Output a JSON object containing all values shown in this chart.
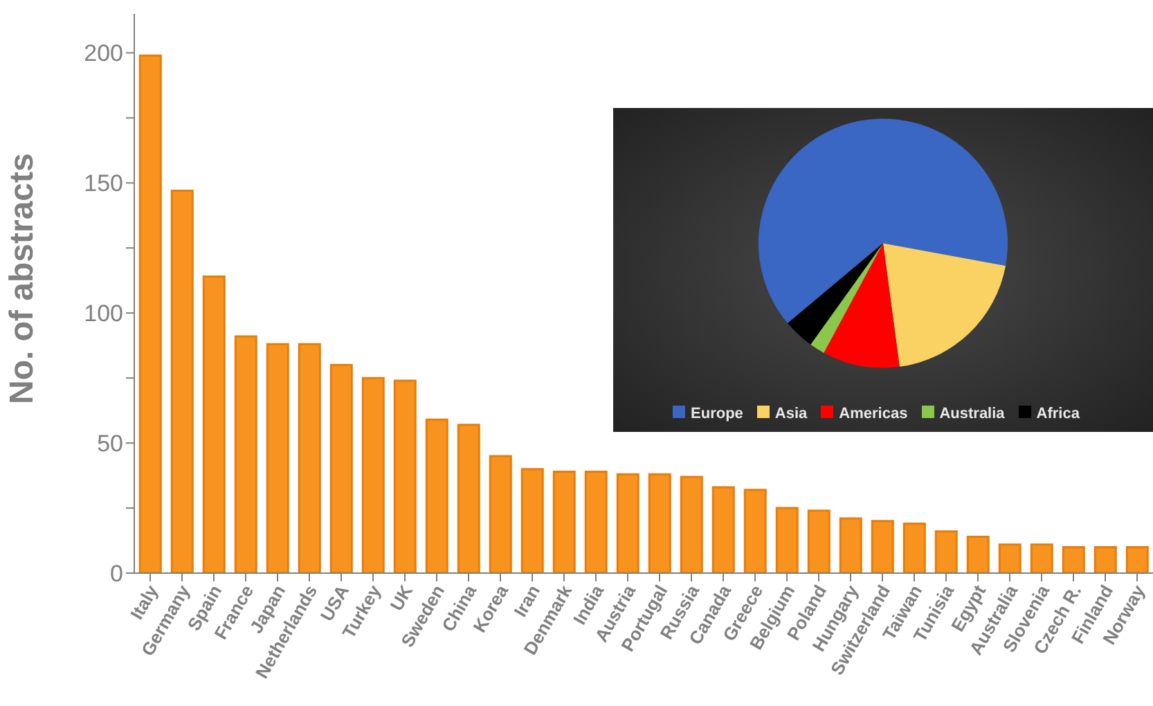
{
  "chart_data": [
    {
      "type": "bar",
      "ylabel": "No. of abstracts",
      "categories": [
        "Italy",
        "Germany",
        "Spain",
        "France",
        "Japan",
        "Netherlands",
        "USA",
        "Turkey",
        "UK",
        "Sweden",
        "China",
        "Korea",
        "Iran",
        "Denmark",
        "India",
        "Austria",
        "Portugal",
        "Russia",
        "Canada",
        "Greece",
        "Belgium",
        "Poland",
        "Hungary",
        "Switzerland",
        "Taiwan",
        "Tunisia",
        "Egypt",
        "Australia",
        "Slovenia",
        "Czech R.",
        "Finland",
        "Norway"
      ],
      "values": [
        199,
        147,
        114,
        91,
        88,
        88,
        80,
        75,
        74,
        59,
        57,
        45,
        40,
        39,
        39,
        38,
        38,
        37,
        33,
        32,
        25,
        24,
        21,
        20,
        19,
        16,
        14,
        11,
        11,
        10,
        10,
        10
      ],
      "color": "#f7931e",
      "ylim": [
        0,
        215
      ],
      "yticks": [
        0,
        {
          "value": 25,
          "label": null
        },
        50,
        {
          "value": 75,
          "label": null
        },
        100,
        {
          "value": 125,
          "label": null
        },
        150,
        {
          "value": 175,
          "label": null
        },
        200
      ],
      "grid": false
    },
    {
      "type": "pie",
      "categories": [
        "Europe",
        "Asia",
        "Americas",
        "Australia",
        "Africa"
      ],
      "values": [
        64,
        20,
        10,
        2,
        4
      ],
      "colors": [
        "#3a66c4",
        "#f9d263",
        "#ff0000",
        "#8ac74a",
        "#000000"
      ],
      "legend": "bottom"
    }
  ]
}
